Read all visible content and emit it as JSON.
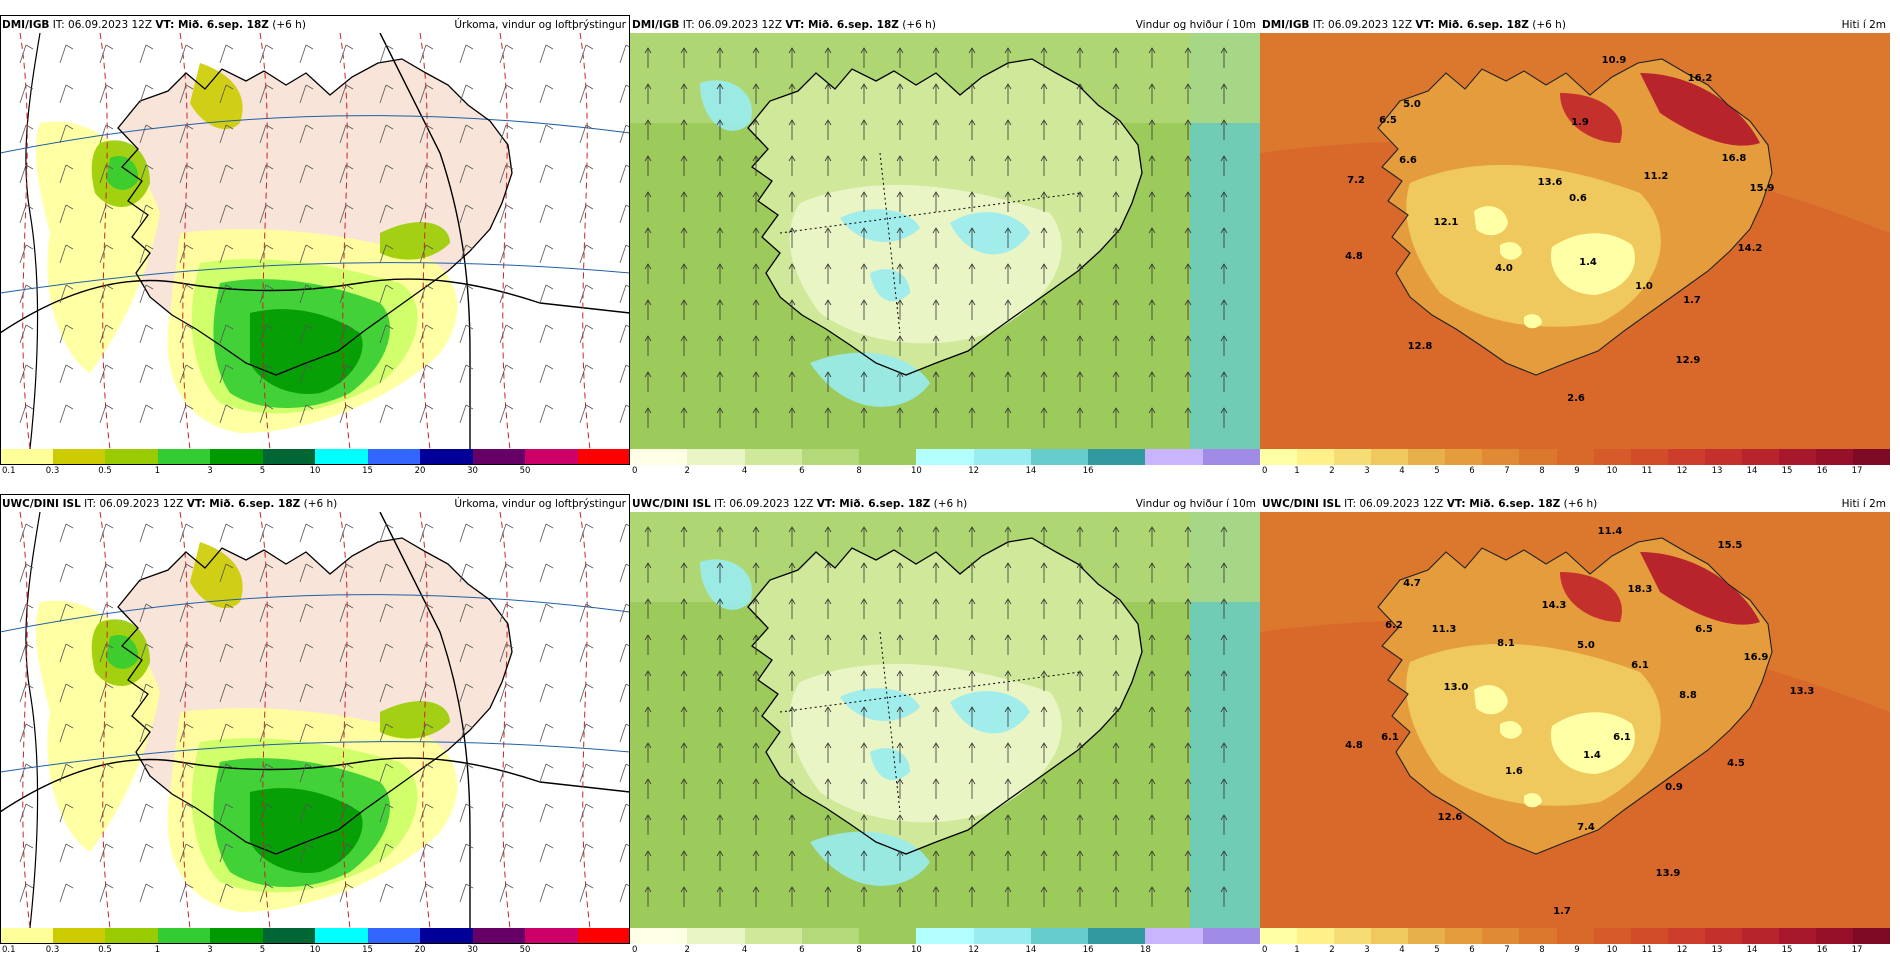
{
  "colors": {
    "precip": [
      "#ffff99",
      "#cccc00",
      "#99cc00",
      "#33cc33",
      "#009900",
      "#006633",
      "#00ffff",
      "#3366ff",
      "#000099",
      "#660066",
      "#cc0066",
      "#ff0000"
    ],
    "wind": [
      "#ffffe6",
      "#e9f5c4",
      "#cfe89a",
      "#b3d97a",
      "#9ccb5b",
      "#b3ffff",
      "#99ecf0",
      "#66cccc",
      "#3399a0",
      "#c8b4ff",
      "#a08ce6"
    ],
    "temp": [
      "#ffffa6",
      "#fff08a",
      "#f5dc75",
      "#efc85e",
      "#e8b04b",
      "#e49c3c",
      "#e08a33",
      "#dc782e",
      "#d9682b",
      "#d65a2a",
      "#d24c2a",
      "#cc3e2b",
      "#c4302c",
      "#b8242c",
      "#a8182c",
      "#96102a",
      "#7e0a26"
    ]
  },
  "panels": [
    {
      "model": "DMI/IGB",
      "it": "IT: 06.09.2023 12Z",
      "vt": "VT: Mið. 6.sep. 18Z",
      "lead": "(+6 h)",
      "title": "Úrkoma, vindur og loftþrýstingur",
      "kind": "precip",
      "ticks": [
        "0.1",
        "0.3",
        "0.5",
        "1",
        "3",
        "5",
        "10",
        "15",
        "20",
        "30",
        "50"
      ],
      "values": []
    },
    {
      "model": "DMI/IGB",
      "it": "IT: 06.09.2023 12Z",
      "vt": "VT: Mið. 6.sep. 18Z",
      "lead": "(+6 h)",
      "title": "Vindur og hviður í 10m",
      "kind": "wind",
      "ticks": [
        "0",
        "2",
        "4",
        "6",
        "8",
        "10",
        "12",
        "14",
        "16"
      ],
      "values": []
    },
    {
      "model": "DMI/IGB",
      "it": "IT: 06.09.2023 12Z",
      "vt": "VT: Mið. 6.sep. 18Z",
      "lead": "(+6 h)",
      "title": "Hiti í 2m",
      "kind": "temp",
      "ticks": [
        "0",
        "1",
        "2",
        "3",
        "4",
        "5",
        "6",
        "7",
        "8",
        "9",
        "10",
        "11",
        "12",
        "13",
        "14",
        "15",
        "16",
        "17"
      ],
      "values": [
        "10.9",
        "16.2",
        "5.0",
        "6.5",
        "1.9",
        "6.6",
        "7.2",
        "13.6",
        "0.6",
        "11.2",
        "16.8",
        "15.9",
        "12.1",
        "4.8",
        "4.0",
        "1.4",
        "14.2",
        "1.0",
        "1.7",
        "12.8",
        "12.9",
        "2.6"
      ]
    },
    {
      "model": "UWC/DINI ISL",
      "it": "IT: 06.09.2023 12Z",
      "vt": "VT: Mið. 6.sep. 18Z",
      "lead": "(+6 h)",
      "title": "Úrkoma, vindur og loftþrýstingur",
      "kind": "precip",
      "ticks": [
        "0.1",
        "0.3",
        "0.5",
        "1",
        "3",
        "5",
        "10",
        "15",
        "20",
        "30",
        "50"
      ],
      "values": []
    },
    {
      "model": "UWC/DINI ISL",
      "it": "IT: 06.09.2023 12Z",
      "vt": "VT: Mið. 6.sep. 18Z",
      "lead": "(+6 h)",
      "title": "Vindur og hviður í 10m",
      "kind": "wind",
      "ticks": [
        "0",
        "2",
        "4",
        "6",
        "8",
        "10",
        "12",
        "14",
        "16",
        "18"
      ],
      "values": []
    },
    {
      "model": "UWC/DINI ISL",
      "it": "IT: 06.09.2023 12Z",
      "vt": "VT: Mið. 6.sep. 18Z",
      "lead": "(+6 h)",
      "title": "Hiti í 2m",
      "kind": "temp",
      "ticks": [
        "0",
        "1",
        "2",
        "3",
        "4",
        "5",
        "6",
        "7",
        "8",
        "9",
        "10",
        "11",
        "12",
        "13",
        "14",
        "15",
        "16",
        "17"
      ],
      "values": [
        "11.4",
        "15.5",
        "4.7",
        "18.3",
        "14.3",
        "6.2",
        "11.3",
        "6.5",
        "8.1",
        "5.0",
        "16.9",
        "6.1",
        "13.0",
        "13.3",
        "8.8",
        "6.1",
        "4.8",
        "6.1",
        "1.6",
        "1.4",
        "4.5",
        "0.9",
        "12.6",
        "7.4",
        "13.9",
        "1.7"
      ]
    }
  ]
}
